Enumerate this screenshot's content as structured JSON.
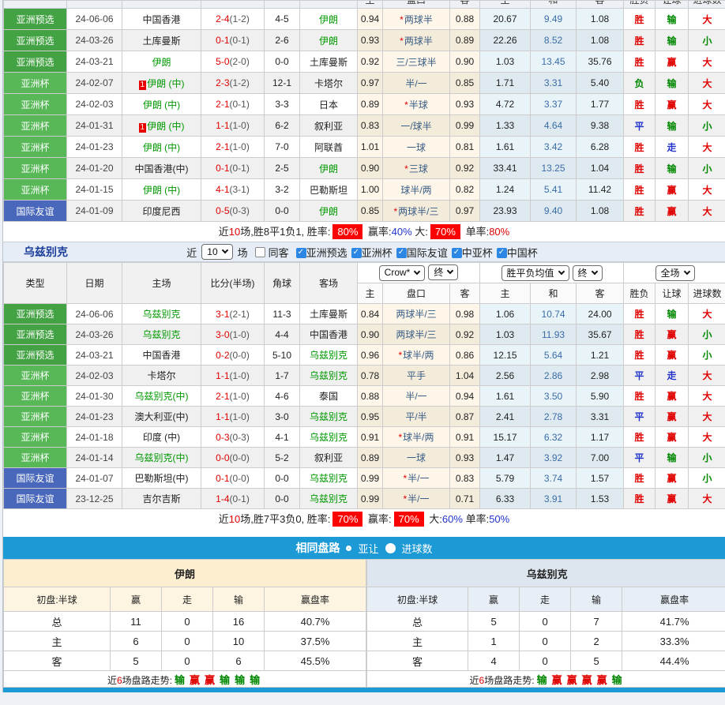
{
  "colors": {
    "accent_blue": "#1b9ad6",
    "badge_red": "#fd0000",
    "pre_green": "#43a243",
    "cup_green": "#58b858",
    "friendly_blue": "#4a68bb",
    "team_green": "#009900"
  },
  "iran": {
    "clipped_headers": [
      "主",
      "盘口",
      "客",
      "主",
      "和",
      "客",
      "胜负",
      "让球",
      "进球数"
    ],
    "rows": [
      {
        "type": "亚洲预选",
        "badge": "pre",
        "date": "24-06-06",
        "home": {
          "name": "中国香港",
          "green": false,
          "flag": ""
        },
        "score": "2-4",
        "half": "(1-2)",
        "corner": "4-5",
        "away": {
          "name": "伊朗",
          "green": true,
          "flag": ""
        },
        "ah": "0.94",
        "line": "两球半",
        "star": true,
        "aa": "0.88",
        "eh": "20.67",
        "ed": "9.49",
        "ea": "1.08",
        "res": "胜",
        "res_c": "r",
        "let": "输",
        "let_c": "g",
        "goal": "大",
        "goal_c": "r"
      },
      {
        "type": "亚洲预选",
        "badge": "pre",
        "date": "24-03-26",
        "home": {
          "name": "土库曼斯",
          "green": false,
          "flag": ""
        },
        "score": "0-1",
        "half": "(0-1)",
        "corner": "2-6",
        "away": {
          "name": "伊朗",
          "green": true,
          "flag": ""
        },
        "ah": "0.93",
        "line": "两球半",
        "star": true,
        "aa": "0.89",
        "eh": "22.26",
        "ed": "8.52",
        "ea": "1.08",
        "res": "胜",
        "res_c": "r",
        "let": "输",
        "let_c": "g",
        "goal": "小",
        "goal_c": "g"
      },
      {
        "type": "亚洲预选",
        "badge": "pre",
        "date": "24-03-21",
        "home": {
          "name": "伊朗",
          "green": true,
          "flag": ""
        },
        "score": "5-0",
        "half": "(2-0)",
        "corner": "0-0",
        "away": {
          "name": "土库曼斯",
          "green": false,
          "flag": ""
        },
        "ah": "0.92",
        "line": "三/三球半",
        "star": false,
        "aa": "0.90",
        "eh": "1.03",
        "ed": "13.45",
        "ea": "35.76",
        "res": "胜",
        "res_c": "r",
        "let": "赢",
        "let_c": "r",
        "goal": "大",
        "goal_c": "r"
      },
      {
        "type": "亚洲杯",
        "badge": "cup",
        "date": "24-02-07",
        "home": {
          "name": "伊朗 (中)",
          "green": true,
          "flag": "1"
        },
        "score": "2-3",
        "half": "(1-2)",
        "corner": "12-1",
        "away": {
          "name": "卡塔尔",
          "green": false,
          "flag": ""
        },
        "ah": "0.97",
        "line": "半/一",
        "star": false,
        "aa": "0.85",
        "eh": "1.71",
        "ed": "3.31",
        "ea": "5.40",
        "res": "负",
        "res_c": "g",
        "let": "输",
        "let_c": "g",
        "goal": "大",
        "goal_c": "r"
      },
      {
        "type": "亚洲杯",
        "badge": "cup",
        "date": "24-02-03",
        "home": {
          "name": "伊朗 (中)",
          "green": true,
          "flag": ""
        },
        "score": "2-1",
        "half": "(0-1)",
        "corner": "3-3",
        "away": {
          "name": "日本",
          "green": false,
          "flag": ""
        },
        "ah": "0.89",
        "line": "半球",
        "star": true,
        "aa": "0.93",
        "eh": "4.72",
        "ed": "3.37",
        "ea": "1.77",
        "res": "胜",
        "res_c": "r",
        "let": "赢",
        "let_c": "r",
        "goal": "大",
        "goal_c": "r"
      },
      {
        "type": "亚洲杯",
        "badge": "cup",
        "date": "24-01-31",
        "home": {
          "name": "伊朗 (中)",
          "green": true,
          "flag": "1"
        },
        "score": "1-1",
        "half": "(1-0)",
        "corner": "6-2",
        "away": {
          "name": "叙利亚",
          "green": false,
          "flag": ""
        },
        "ah": "0.83",
        "line": "一/球半",
        "star": false,
        "aa": "0.99",
        "eh": "1.33",
        "ed": "4.64",
        "ea": "9.38",
        "res": "平",
        "res_c": "b",
        "let": "输",
        "let_c": "g",
        "goal": "小",
        "goal_c": "g"
      },
      {
        "type": "亚洲杯",
        "badge": "cup",
        "date": "24-01-23",
        "home": {
          "name": "伊朗 (中)",
          "green": true,
          "flag": ""
        },
        "score": "2-1",
        "half": "(1-0)",
        "corner": "7-0",
        "away": {
          "name": "阿联酋",
          "green": false,
          "flag": ""
        },
        "ah": "1.01",
        "line": "一球",
        "star": false,
        "aa": "0.81",
        "eh": "1.61",
        "ed": "3.42",
        "ea": "6.28",
        "res": "胜",
        "res_c": "r",
        "let": "走",
        "let_c": "b",
        "goal": "大",
        "goal_c": "r"
      },
      {
        "type": "亚洲杯",
        "badge": "cup",
        "date": "24-01-20",
        "home": {
          "name": "中国香港(中)",
          "green": false,
          "flag": ""
        },
        "score": "0-1",
        "half": "(0-1)",
        "corner": "2-5",
        "away": {
          "name": "伊朗",
          "green": true,
          "flag": ""
        },
        "ah": "0.90",
        "line": "三球",
        "star": true,
        "aa": "0.92",
        "eh": "33.41",
        "ed": "13.25",
        "ea": "1.04",
        "res": "胜",
        "res_c": "r",
        "let": "输",
        "let_c": "g",
        "goal": "小",
        "goal_c": "g"
      },
      {
        "type": "亚洲杯",
        "badge": "cup",
        "date": "24-01-15",
        "home": {
          "name": "伊朗 (中)",
          "green": true,
          "flag": ""
        },
        "score": "4-1",
        "half": "(3-1)",
        "corner": "3-2",
        "away": {
          "name": "巴勒斯坦",
          "green": false,
          "flag": ""
        },
        "ah": "1.00",
        "line": "球半/两",
        "star": false,
        "aa": "0.82",
        "eh": "1.24",
        "ed": "5.41",
        "ea": "11.42",
        "res": "胜",
        "res_c": "r",
        "let": "赢",
        "let_c": "r",
        "goal": "大",
        "goal_c": "r"
      },
      {
        "type": "国际友谊",
        "badge": "friendly",
        "date": "24-01-09",
        "home": {
          "name": "印度尼西",
          "green": false,
          "flag": ""
        },
        "score": "0-5",
        "half": "(0-3)",
        "corner": "0-0",
        "away": {
          "name": "伊朗",
          "green": true,
          "flag": ""
        },
        "ah": "0.85",
        "line": "两球半/三",
        "star": true,
        "aa": "0.97",
        "eh": "23.93",
        "ed": "9.40",
        "ea": "1.08",
        "res": "胜",
        "res_c": "r",
        "let": "赢",
        "let_c": "r",
        "goal": "大",
        "goal_c": "r"
      }
    ],
    "summary": [
      {
        "t": "近",
        "c": "k"
      },
      {
        "t": "10",
        "c": "r"
      },
      {
        "t": "场,胜8平1负1, 胜率:",
        "c": "k"
      },
      {
        "t": "80%",
        "c": "badge"
      },
      {
        "t": " 赢率:",
        "c": "k"
      },
      {
        "t": "40%",
        "c": "b"
      },
      {
        "t": " 大:",
        "c": "k"
      },
      {
        "t": "70%",
        "c": "badge"
      },
      {
        "t": " 单率:",
        "c": "k"
      },
      {
        "t": "80%",
        "c": "r"
      }
    ]
  },
  "section": {
    "title": "乌兹别克",
    "near_label": "近",
    "count_value": "10",
    "field_label": "场",
    "same_away_label": "同客",
    "filters": [
      "亚洲预选",
      "亚洲杯",
      "国际友谊",
      "中亚杯",
      "中国杯"
    ]
  },
  "uzbek": {
    "headers": {
      "main": [
        "类型",
        "日期",
        "主场",
        "比分(半场)",
        "角球",
        "客场"
      ],
      "sub": [
        "主",
        "盘口",
        "客",
        "主",
        "和",
        "客",
        "胜负",
        "让球",
        "进球数"
      ],
      "odds_source_select": "Crow*",
      "odds_final_select": "终",
      "euro_mean_select": "胜平负均值",
      "euro_final_select": "终",
      "scope_select": "全场"
    },
    "rows": [
      {
        "type": "亚洲预选",
        "badge": "pre",
        "date": "24-06-06",
        "home": {
          "name": "乌兹别克",
          "green": true,
          "flag": ""
        },
        "score": "3-1",
        "half": "(2-1)",
        "corner": "11-3",
        "away": {
          "name": "土库曼斯",
          "green": false,
          "flag": ""
        },
        "ah": "0.84",
        "line": "两球半/三",
        "star": false,
        "aa": "0.98",
        "eh": "1.06",
        "ed": "10.74",
        "ea": "24.00",
        "res": "胜",
        "res_c": "r",
        "let": "输",
        "let_c": "g",
        "goal": "大",
        "goal_c": "r"
      },
      {
        "type": "亚洲预选",
        "badge": "pre",
        "date": "24-03-26",
        "home": {
          "name": "乌兹别克",
          "green": true,
          "flag": ""
        },
        "score": "3-0",
        "half": "(1-0)",
        "corner": "4-4",
        "away": {
          "name": "中国香港",
          "green": false,
          "flag": ""
        },
        "ah": "0.90",
        "line": "两球半/三",
        "star": false,
        "aa": "0.92",
        "eh": "1.03",
        "ed": "11.93",
        "ea": "35.67",
        "res": "胜",
        "res_c": "r",
        "let": "赢",
        "let_c": "r",
        "goal": "小",
        "goal_c": "g"
      },
      {
        "type": "亚洲预选",
        "badge": "pre",
        "date": "24-03-21",
        "home": {
          "name": "中国香港",
          "green": false,
          "flag": ""
        },
        "score": "0-2",
        "half": "(0-0)",
        "corner": "5-10",
        "away": {
          "name": "乌兹别克",
          "green": true,
          "flag": ""
        },
        "ah": "0.96",
        "line": "球半/两",
        "star": true,
        "aa": "0.86",
        "eh": "12.15",
        "ed": "5.64",
        "ea": "1.21",
        "res": "胜",
        "res_c": "r",
        "let": "赢",
        "let_c": "r",
        "goal": "小",
        "goal_c": "g"
      },
      {
        "type": "亚洲杯",
        "badge": "cup",
        "date": "24-02-03",
        "home": {
          "name": "卡塔尔",
          "green": false,
          "flag": ""
        },
        "score": "1-1",
        "half": "(1-0)",
        "corner": "1-7",
        "away": {
          "name": "乌兹别克",
          "green": true,
          "flag": ""
        },
        "ah": "0.78",
        "line": "平手",
        "star": false,
        "aa": "1.04",
        "eh": "2.56",
        "ed": "2.86",
        "ea": "2.98",
        "res": "平",
        "res_c": "b",
        "let": "走",
        "let_c": "b",
        "goal": "大",
        "goal_c": "r"
      },
      {
        "type": "亚洲杯",
        "badge": "cup",
        "date": "24-01-30",
        "home": {
          "name": "乌兹别克(中)",
          "green": true,
          "flag": ""
        },
        "score": "2-1",
        "half": "(1-0)",
        "corner": "4-6",
        "away": {
          "name": "泰国",
          "green": false,
          "flag": ""
        },
        "ah": "0.88",
        "line": "半/一",
        "star": false,
        "aa": "0.94",
        "eh": "1.61",
        "ed": "3.50",
        "ea": "5.90",
        "res": "胜",
        "res_c": "r",
        "let": "赢",
        "let_c": "r",
        "goal": "大",
        "goal_c": "r"
      },
      {
        "type": "亚洲杯",
        "badge": "cup",
        "date": "24-01-23",
        "home": {
          "name": "澳大利亚(中)",
          "green": false,
          "flag": ""
        },
        "score": "1-1",
        "half": "(1-0)",
        "corner": "3-0",
        "away": {
          "name": "乌兹别克",
          "green": true,
          "flag": ""
        },
        "ah": "0.95",
        "line": "平/半",
        "star": false,
        "aa": "0.87",
        "eh": "2.41",
        "ed": "2.78",
        "ea": "3.31",
        "res": "平",
        "res_c": "b",
        "let": "赢",
        "let_c": "r",
        "goal": "大",
        "goal_c": "r"
      },
      {
        "type": "亚洲杯",
        "badge": "cup",
        "date": "24-01-18",
        "home": {
          "name": "印度 (中)",
          "green": false,
          "flag": ""
        },
        "score": "0-3",
        "half": "(0-3)",
        "corner": "4-1",
        "away": {
          "name": "乌兹别克",
          "green": true,
          "flag": ""
        },
        "ah": "0.91",
        "line": "球半/两",
        "star": true,
        "aa": "0.91",
        "eh": "15.17",
        "ed": "6.32",
        "ea": "1.17",
        "res": "胜",
        "res_c": "r",
        "let": "赢",
        "let_c": "r",
        "goal": "大",
        "goal_c": "r"
      },
      {
        "type": "亚洲杯",
        "badge": "cup",
        "date": "24-01-14",
        "home": {
          "name": "乌兹别克(中)",
          "green": true,
          "flag": ""
        },
        "score": "0-0",
        "half": "(0-0)",
        "corner": "5-2",
        "away": {
          "name": "叙利亚",
          "green": false,
          "flag": ""
        },
        "ah": "0.89",
        "line": "一球",
        "star": false,
        "aa": "0.93",
        "eh": "1.47",
        "ed": "3.92",
        "ea": "7.00",
        "res": "平",
        "res_c": "b",
        "let": "输",
        "let_c": "g",
        "goal": "小",
        "goal_c": "g"
      },
      {
        "type": "国际友谊",
        "badge": "friendly",
        "date": "24-01-07",
        "home": {
          "name": "巴勒斯坦(中)",
          "green": false,
          "flag": ""
        },
        "score": "0-1",
        "half": "(0-0)",
        "corner": "0-0",
        "away": {
          "name": "乌兹别克",
          "green": true,
          "flag": ""
        },
        "ah": "0.99",
        "line": "半/一",
        "star": true,
        "aa": "0.83",
        "eh": "5.79",
        "ed": "3.74",
        "ea": "1.57",
        "res": "胜",
        "res_c": "r",
        "let": "赢",
        "let_c": "r",
        "goal": "小",
        "goal_c": "g"
      },
      {
        "type": "国际友谊",
        "badge": "friendly",
        "date": "23-12-25",
        "home": {
          "name": "吉尔吉斯",
          "green": false,
          "flag": ""
        },
        "score": "1-4",
        "half": "(0-1)",
        "corner": "0-0",
        "away": {
          "name": "乌兹别克",
          "green": true,
          "flag": ""
        },
        "ah": "0.99",
        "line": "半/一",
        "star": true,
        "aa": "0.71",
        "eh": "6.33",
        "ed": "3.91",
        "ea": "1.53",
        "res": "胜",
        "res_c": "r",
        "let": "赢",
        "let_c": "r",
        "goal": "大",
        "goal_c": "r"
      }
    ],
    "summary": [
      {
        "t": "近",
        "c": "k"
      },
      {
        "t": "10",
        "c": "r"
      },
      {
        "t": "场,胜7平3负0, 胜率:",
        "c": "k"
      },
      {
        "t": "70%",
        "c": "badge"
      },
      {
        "t": " 赢率:",
        "c": "k"
      },
      {
        "t": "70%",
        "c": "badge"
      },
      {
        "t": " 大:",
        "c": "k"
      },
      {
        "t": "60%",
        "c": "b"
      },
      {
        "t": " 单率:",
        "c": "k"
      },
      {
        "t": "50%",
        "c": "b"
      }
    ]
  },
  "panel_bar": {
    "title": "相同盘路",
    "radio1_label": "亚让",
    "radio2_label": "进球数"
  },
  "compare": {
    "left": {
      "team": "伊朗",
      "headers": [
        "初盘:半球",
        "赢",
        "走",
        "输",
        "赢盘率"
      ],
      "rows": [
        [
          "总",
          "11",
          "0",
          "16",
          "40.7%"
        ],
        [
          "主",
          "6",
          "0",
          "10",
          "37.5%"
        ],
        [
          "客",
          "5",
          "0",
          "6",
          "45.5%"
        ]
      ],
      "trend_label": [
        {
          "t": "近",
          "c": "k"
        },
        {
          "t": "6",
          "c": "r"
        },
        {
          "t": "场盘路走势:",
          "c": "k"
        }
      ],
      "trend": [
        {
          "t": "输",
          "c": "g"
        },
        {
          "t": "赢",
          "c": "r"
        },
        {
          "t": "赢",
          "c": "r"
        },
        {
          "t": "输",
          "c": "g"
        },
        {
          "t": "输",
          "c": "g"
        },
        {
          "t": "输",
          "c": "g"
        }
      ]
    },
    "right": {
      "team": "乌兹别克",
      "headers": [
        "初盘:半球",
        "赢",
        "走",
        "输",
        "赢盘率"
      ],
      "rows": [
        [
          "总",
          "5",
          "0",
          "7",
          "41.7%"
        ],
        [
          "主",
          "1",
          "0",
          "2",
          "33.3%"
        ],
        [
          "客",
          "4",
          "0",
          "5",
          "44.4%"
        ]
      ],
      "trend_label": [
        {
          "t": "近",
          "c": "k"
        },
        {
          "t": "6",
          "c": "r"
        },
        {
          "t": "场盘路走势:",
          "c": "k"
        }
      ],
      "trend": [
        {
          "t": "输",
          "c": "g"
        },
        {
          "t": "赢",
          "c": "r"
        },
        {
          "t": "赢",
          "c": "r"
        },
        {
          "t": "赢",
          "c": "r"
        },
        {
          "t": "赢",
          "c": "r"
        },
        {
          "t": "输",
          "c": "g"
        }
      ]
    }
  }
}
